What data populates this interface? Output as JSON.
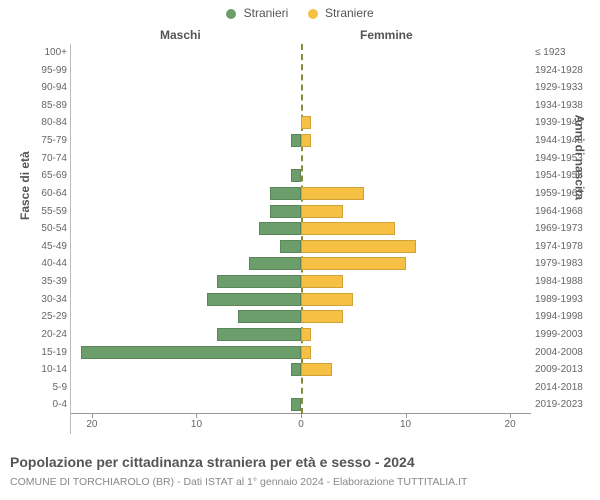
{
  "legend": {
    "male": {
      "label": "Stranieri",
      "color": "#6b9e6b"
    },
    "female": {
      "label": "Straniere",
      "color": "#f5c043"
    }
  },
  "headers": {
    "left": "Maschi",
    "right": "Femmine"
  },
  "ylabels": {
    "left": "Fasce di età",
    "right": "Anni di nascita"
  },
  "title": "Popolazione per cittadinanza straniera per età e sesso - 2024",
  "subtitle": "COMUNE DI TORCHIAROLO (BR) - Dati ISTAT al 1° gennaio 2024 - Elaborazione TUTTITALIA.IT",
  "axis": {
    "max": 22,
    "ticks_left": [
      20,
      10,
      0
    ],
    "ticks_right": [
      0,
      10,
      20
    ]
  },
  "colors": {
    "male": "#6b9e6b",
    "female": "#f5c043",
    "grid": "#bbbbbb",
    "centerline": "#8a8a3a",
    "text": "#555555",
    "tick_text": "#666666",
    "background": "#ffffff"
  },
  "rows": [
    {
      "age": "100+",
      "birth": "≤ 1923",
      "m": 0,
      "f": 0
    },
    {
      "age": "95-99",
      "birth": "1924-1928",
      "m": 0,
      "f": 0
    },
    {
      "age": "90-94",
      "birth": "1929-1933",
      "m": 0,
      "f": 0
    },
    {
      "age": "85-89",
      "birth": "1934-1938",
      "m": 0,
      "f": 0
    },
    {
      "age": "80-84",
      "birth": "1939-1943",
      "m": 0,
      "f": 1
    },
    {
      "age": "75-79",
      "birth": "1944-1948",
      "m": 1,
      "f": 1
    },
    {
      "age": "70-74",
      "birth": "1949-1953",
      "m": 0,
      "f": 0
    },
    {
      "age": "65-69",
      "birth": "1954-1958",
      "m": 1,
      "f": 0
    },
    {
      "age": "60-64",
      "birth": "1959-1963",
      "m": 3,
      "f": 6
    },
    {
      "age": "55-59",
      "birth": "1964-1968",
      "m": 3,
      "f": 4
    },
    {
      "age": "50-54",
      "birth": "1969-1973",
      "m": 4,
      "f": 9
    },
    {
      "age": "45-49",
      "birth": "1974-1978",
      "m": 2,
      "f": 11
    },
    {
      "age": "40-44",
      "birth": "1979-1983",
      "m": 5,
      "f": 10
    },
    {
      "age": "35-39",
      "birth": "1984-1988",
      "m": 8,
      "f": 4
    },
    {
      "age": "30-34",
      "birth": "1989-1993",
      "m": 9,
      "f": 5
    },
    {
      "age": "25-29",
      "birth": "1994-1998",
      "m": 6,
      "f": 4
    },
    {
      "age": "20-24",
      "birth": "1999-2003",
      "m": 8,
      "f": 1
    },
    {
      "age": "15-19",
      "birth": "2004-2008",
      "m": 21,
      "f": 1
    },
    {
      "age": "10-14",
      "birth": "2009-2013",
      "m": 1,
      "f": 3
    },
    {
      "age": "5-9",
      "birth": "2014-2018",
      "m": 0,
      "f": 0
    },
    {
      "age": "0-4",
      "birth": "2019-2023",
      "m": 1,
      "f": 0
    }
  ]
}
